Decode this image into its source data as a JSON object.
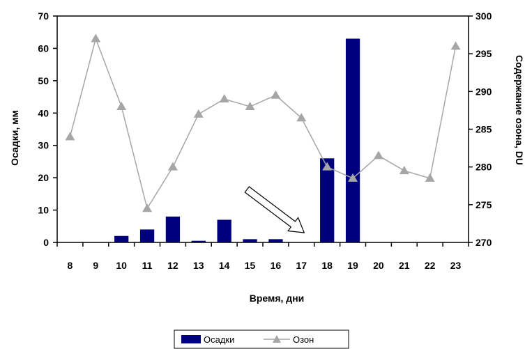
{
  "chart_data": {
    "type": "bar+line",
    "categories": [
      "8",
      "9",
      "10",
      "11",
      "12",
      "13",
      "14",
      "15",
      "16",
      "17",
      "18",
      "19",
      "20",
      "21",
      "22",
      "23"
    ],
    "series": [
      {
        "name": "Осадки",
        "type": "bar",
        "axis": "left",
        "color": "#00007f",
        "values": [
          0,
          0,
          2,
          4,
          8,
          0.5,
          7,
          1,
          1,
          0,
          26,
          63,
          0,
          0,
          0,
          0
        ]
      },
      {
        "name": "Озон",
        "type": "line",
        "axis": "right",
        "color": "#a6a6a6",
        "marker": "triangle",
        "values": [
          284,
          297,
          288,
          274.5,
          280,
          287,
          289,
          288,
          289.5,
          286.5,
          280,
          278.5,
          281.5,
          279.5,
          278.5,
          296
        ]
      }
    ],
    "xlabel": "Время, дни",
    "ylabel_left": "Осадки, мм",
    "ylabel_right": "Содержание озона, DU",
    "ylim_left": [
      0,
      70
    ],
    "ylim_right": [
      270,
      300
    ],
    "yticks_left": [
      "0",
      "10",
      "20",
      "30",
      "40",
      "50",
      "60",
      "70"
    ],
    "yticks_right": [
      "270",
      "275",
      "280",
      "285",
      "290",
      "295",
      "300"
    ],
    "legend_position": "bottom",
    "grid": false,
    "annotation": {
      "type": "arrow",
      "category": "17"
    }
  }
}
